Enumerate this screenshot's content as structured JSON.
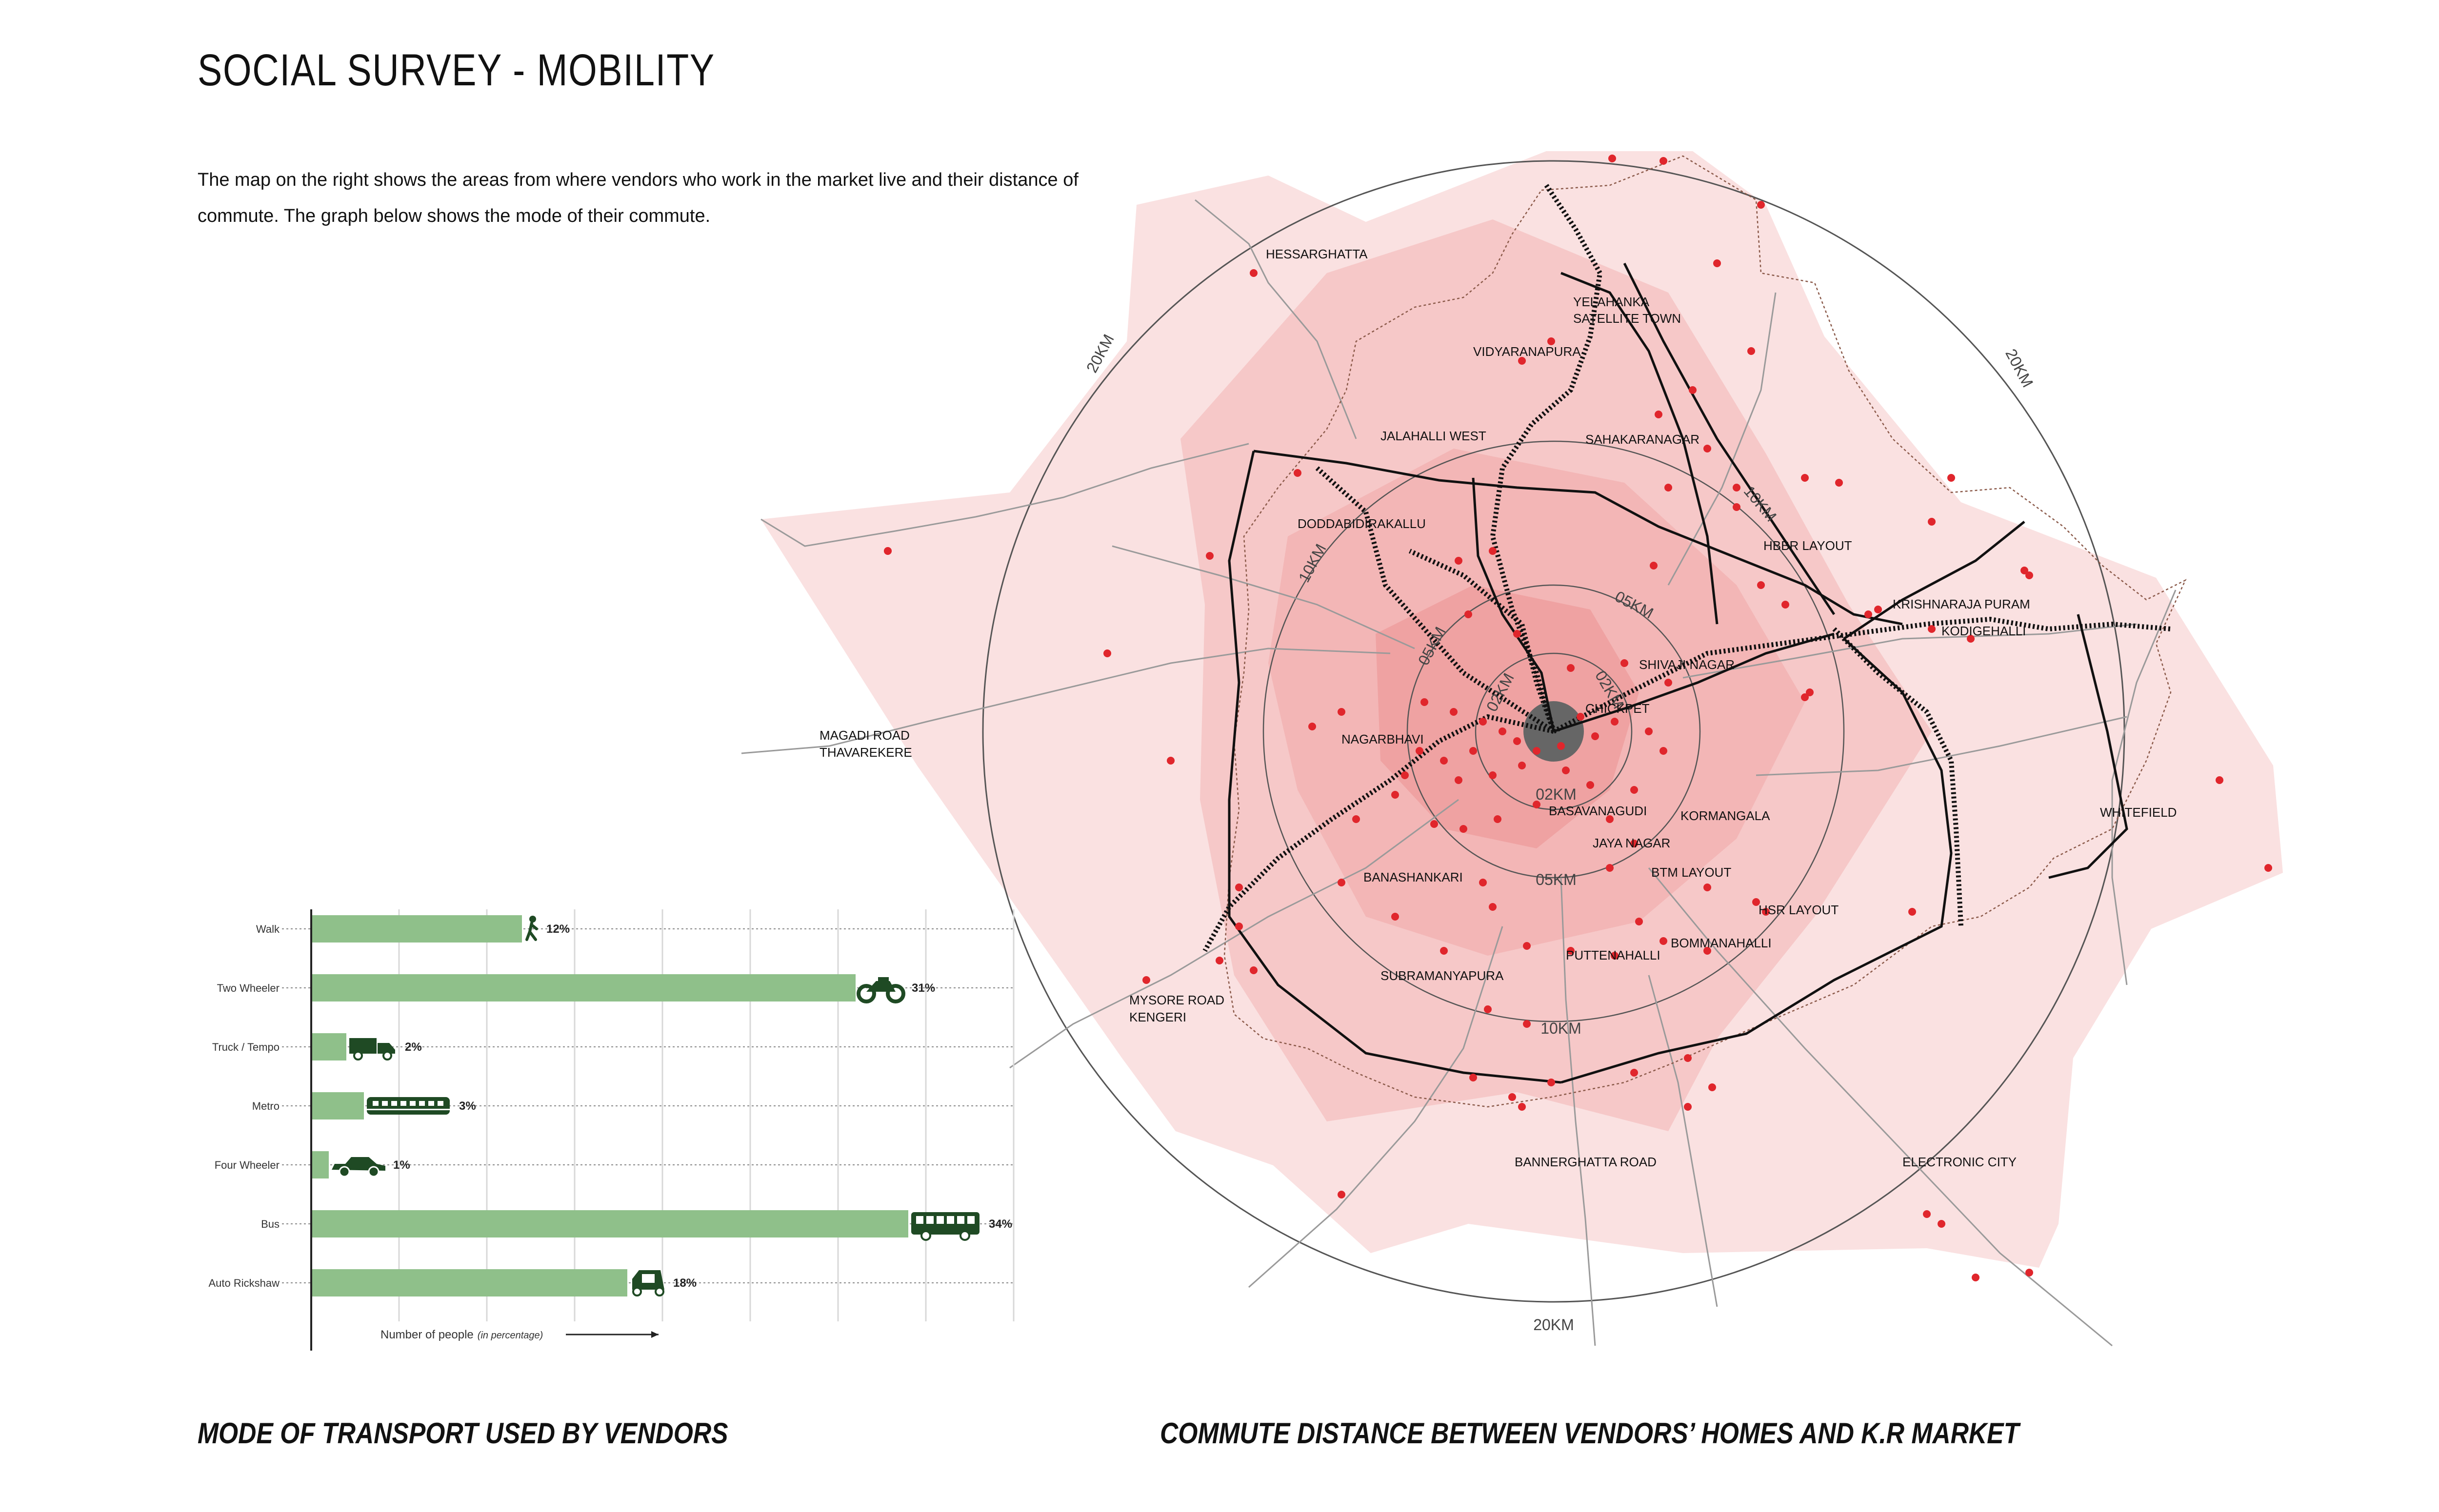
{
  "page": {
    "title": "SOCIAL SURVEY - MOBILITY",
    "intro": "The map on the right shows the areas from where vendors who work in the market live and their distance of commute.  The graph below shows the mode of their commute.",
    "caption_left": "MODE OF TRANSPORT USED BY VENDORS",
    "caption_right": "COMMUTE DISTANCE BETWEEN VENDORS’ HOMES AND K.R MARKET"
  },
  "colors": {
    "bar": "#8fc08a",
    "icon": "#1f4a24",
    "map_fill": "#f6c4c4",
    "dot": "#e0262c",
    "road": "#9a9a9a",
    "boundary": "#8b5a4a"
  },
  "chart_data": {
    "type": "bar",
    "orientation": "horizontal",
    "categories": [
      "Walk",
      "Two Wheeler",
      "Truck / Tempo",
      "Metro",
      "Four Wheeler",
      "Bus",
      "Auto Rickshaw"
    ],
    "values": [
      12,
      31,
      2,
      3,
      1,
      34,
      18
    ],
    "value_labels": [
      "12%",
      "31%",
      "2%",
      "3%",
      "1%",
      "34%",
      "18%"
    ],
    "icons": [
      "walk-icon",
      "motorcycle-icon",
      "truck-icon",
      "metro-icon",
      "car-icon",
      "bus-icon",
      "auto-rickshaw-icon"
    ],
    "xlabel_main": "Number of people",
    "xlabel_note": "(in percentage)",
    "xlim": [
      0,
      40
    ],
    "grid": true
  },
  "map": {
    "center_label": "CHICKPET",
    "ring_labels": {
      "km2_a": "02KM",
      "km2_b": "02KM",
      "km2_c": "02KM",
      "km5_a": "05KM",
      "km5_b": "05KM",
      "km5_c": "05KM",
      "km10_a": "10KM",
      "km10_b": "10KM",
      "km10_c": "10KM",
      "km20_a": "20KM",
      "km20_b": "20KM",
      "km20_c": "20KM"
    },
    "places": [
      {
        "name": "HESSARGHATTA"
      },
      {
        "name": "YELAHANKA"
      },
      {
        "name": "SATELLITE TOWN"
      },
      {
        "name": "VIDYARANAPURA"
      },
      {
        "name": "JALAHALLI WEST"
      },
      {
        "name": "SAHAKARANAGAR"
      },
      {
        "name": "DODDABIDIRAKALLU"
      },
      {
        "name": "HBBR LAYOUT"
      },
      {
        "name": "KRISHNARAJA PURAM"
      },
      {
        "name": "KODIGEHALLI"
      },
      {
        "name": "SHIVAJI NAGAR"
      },
      {
        "name": "MAGADI ROAD"
      },
      {
        "name": "THAVAREKERE"
      },
      {
        "name": "NAGARBHAVI"
      },
      {
        "name": "BASAVANAGUDI"
      },
      {
        "name": "KORMANGALA"
      },
      {
        "name": "JAYA NAGAR"
      },
      {
        "name": "WHITEFIELD"
      },
      {
        "name": "BANASHANKARI"
      },
      {
        "name": "BTM LAYOUT"
      },
      {
        "name": "HSR LAYOUT"
      },
      {
        "name": "BOMMANAHALLI"
      },
      {
        "name": "PUTTENAHALLI"
      },
      {
        "name": "SUBRAMANYAPURA"
      },
      {
        "name": "MYSORE ROAD"
      },
      {
        "name": "KENGERI"
      },
      {
        "name": "BANNERGHATTA ROAD"
      },
      {
        "name": "ELECTRONIC CITY"
      }
    ]
  }
}
